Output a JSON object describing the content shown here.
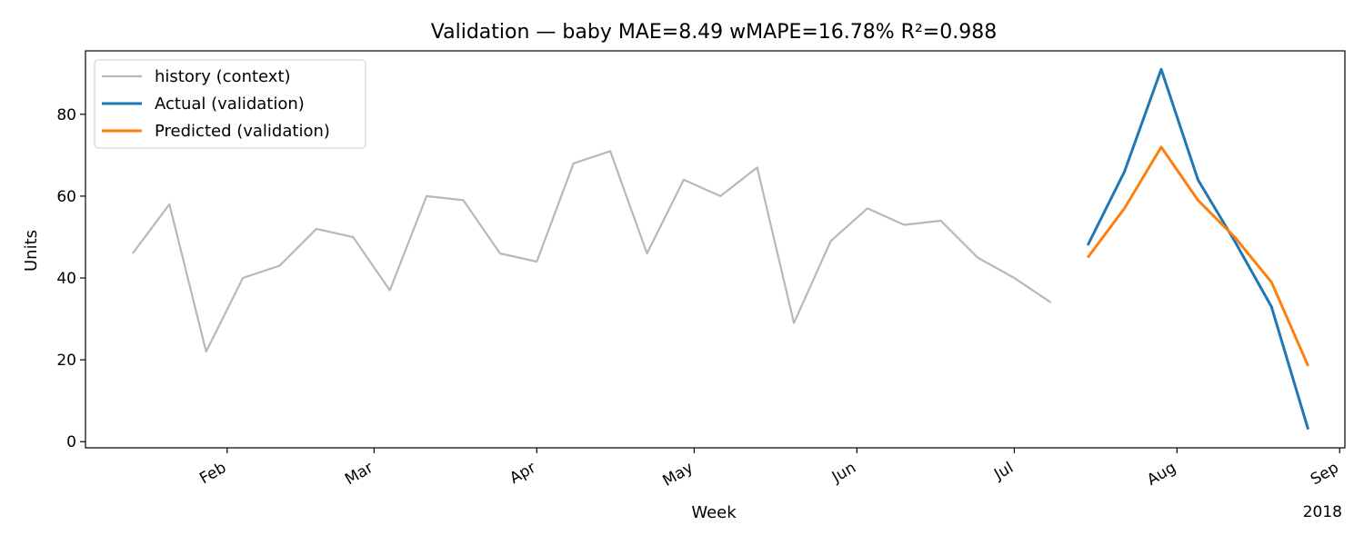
{
  "chart_data": {
    "type": "line",
    "title": "Validation — baby   MAE=8.49  wMAPE=16.78%  R²=0.988",
    "xlabel": "Week",
    "ylabel": "Units",
    "year_label": "2018",
    "ylim": [
      -1.5,
      95.5
    ],
    "xlim": [
      "2018-01-05",
      "2018-09-02"
    ],
    "yticks": [
      0,
      20,
      40,
      60,
      80
    ],
    "xticks": [
      {
        "label": "Feb",
        "date": "2018-02-01"
      },
      {
        "label": "Mar",
        "date": "2018-03-01"
      },
      {
        "label": "Apr",
        "date": "2018-04-01"
      },
      {
        "label": "May",
        "date": "2018-05-01"
      },
      {
        "label": "Jun",
        "date": "2018-06-01"
      },
      {
        "label": "Jul",
        "date": "2018-07-01"
      },
      {
        "label": "Aug",
        "date": "2018-08-01"
      },
      {
        "label": "Sep",
        "date": "2018-09-01"
      }
    ],
    "grid": false,
    "legend_position": "top-left",
    "series": [
      {
        "name": "history (context)",
        "color": "#b8b8b8",
        "x": [
          "2018-01-14",
          "2018-01-21",
          "2018-01-28",
          "2018-02-04",
          "2018-02-11",
          "2018-02-18",
          "2018-02-25",
          "2018-03-04",
          "2018-03-11",
          "2018-03-18",
          "2018-03-25",
          "2018-04-01",
          "2018-04-08",
          "2018-04-15",
          "2018-04-22",
          "2018-04-29",
          "2018-05-06",
          "2018-05-13",
          "2018-05-20",
          "2018-05-27",
          "2018-06-03",
          "2018-06-10",
          "2018-06-17",
          "2018-06-24",
          "2018-07-01",
          "2018-07-08"
        ],
        "values": [
          46,
          58,
          22,
          40,
          43,
          52,
          50,
          37,
          60,
          59,
          46,
          44,
          68,
          71,
          46,
          64,
          60,
          67,
          29,
          49,
          57,
          53,
          54,
          45,
          40,
          34
        ]
      },
      {
        "name": "Actual (validation)",
        "color": "#1f77b4",
        "x": [
          "2018-07-15",
          "2018-07-22",
          "2018-07-29",
          "2018-08-05",
          "2018-08-12",
          "2018-08-19",
          "2018-08-26"
        ],
        "values": [
          48,
          66,
          91,
          64,
          49,
          33,
          3
        ]
      },
      {
        "name": "Predicted (validation)",
        "color": "#ff7f0e",
        "x": [
          "2018-07-15",
          "2018-07-22",
          "2018-07-29",
          "2018-08-05",
          "2018-08-12",
          "2018-08-19",
          "2018-08-26"
        ],
        "values": [
          45,
          57,
          72,
          59,
          50,
          39,
          18.5
        ]
      }
    ]
  }
}
